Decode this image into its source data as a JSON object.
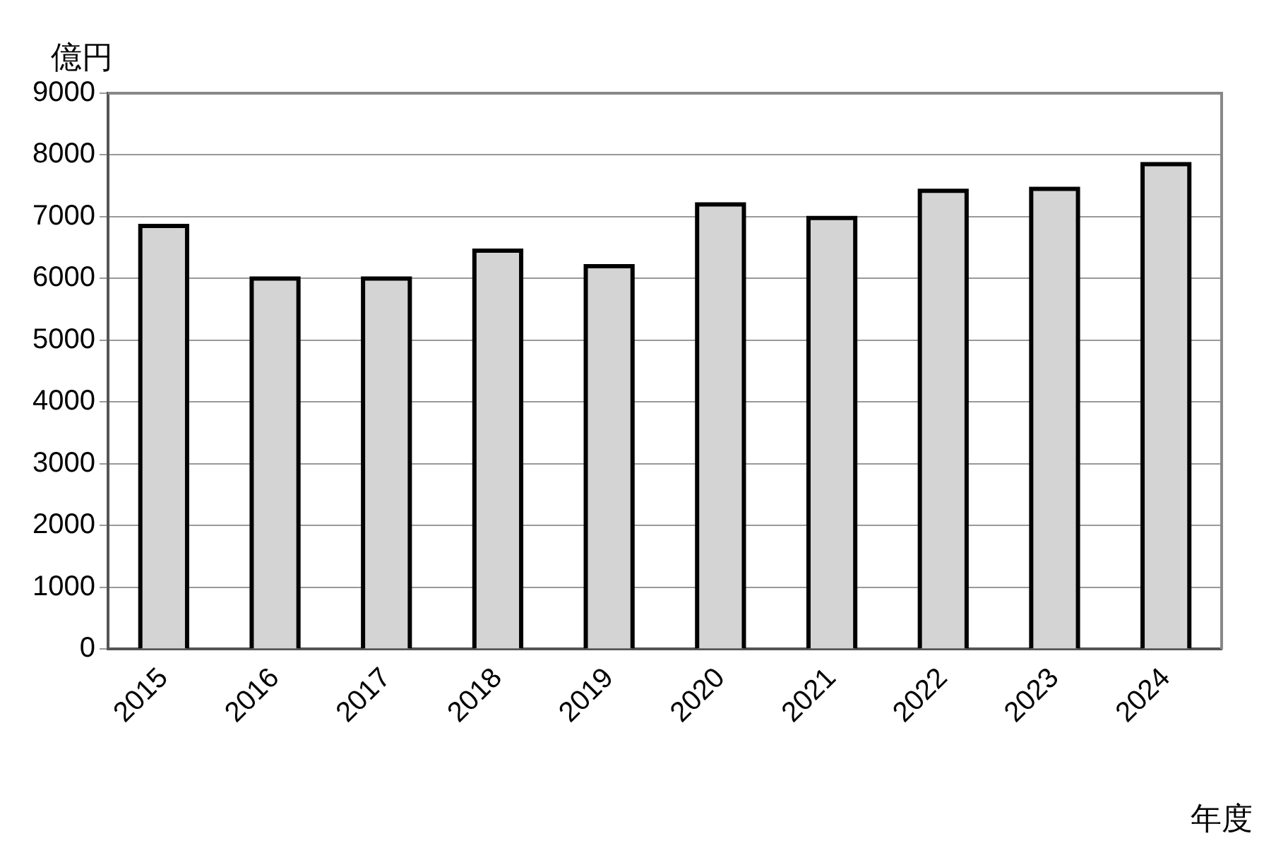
{
  "chart_data": {
    "type": "bar",
    "ylabel": "億円",
    "xlabel": "年度",
    "categories": [
      "2015",
      "2016",
      "2017",
      "2018",
      "2019",
      "2020",
      "2021",
      "2022",
      "2023",
      "2024"
    ],
    "values": [
      6850,
      6000,
      6000,
      6450,
      6200,
      7200,
      6980,
      7420,
      7450,
      7850
    ],
    "color": "#d4d4d4",
    "ylim": [
      0,
      9000
    ],
    "yticks": [
      0,
      1000,
      2000,
      3000,
      4000,
      5000,
      6000,
      7000,
      8000,
      9000
    ],
    "grid": "y",
    "legend": false
  }
}
